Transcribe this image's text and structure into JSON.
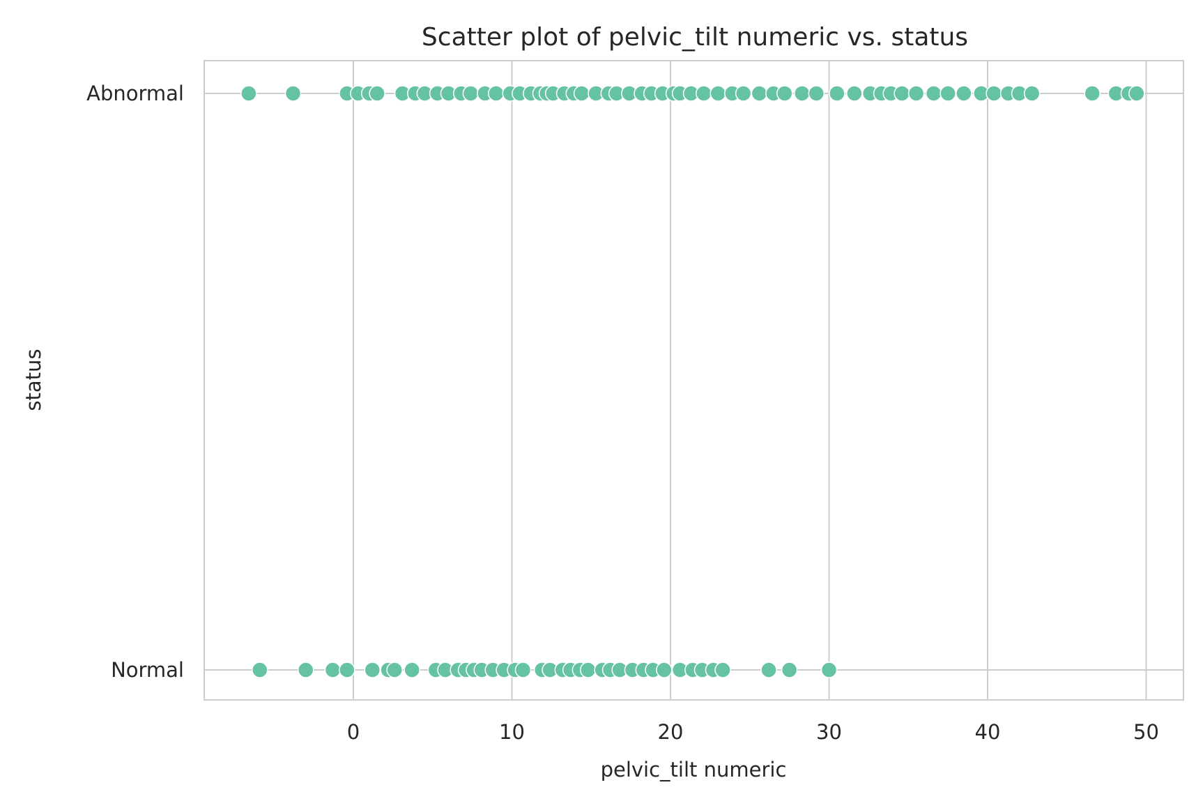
{
  "chart_data": {
    "type": "scatter",
    "title": "Scatter plot of pelvic_tilt numeric vs. status",
    "xlabel": "pelvic_tilt numeric",
    "ylabel": "status",
    "xlim": [
      -9.5,
      52
    ],
    "xticks": [
      0,
      10,
      20,
      30,
      40,
      50
    ],
    "categories": [
      "Abnormal",
      "Normal"
    ],
    "grid": true,
    "point_color": "#66c2a5",
    "series": [
      {
        "category": "Abnormal",
        "x": [
          -6.6,
          -3.8,
          -0.4,
          0.3,
          1.0,
          1.5,
          3.1,
          3.9,
          4.5,
          5.3,
          6.0,
          6.8,
          7.4,
          8.3,
          9.0,
          9.9,
          10.5,
          11.2,
          11.8,
          12.2,
          12.6,
          13.3,
          13.9,
          14.4,
          15.3,
          16.1,
          16.6,
          17.4,
          18.2,
          18.8,
          19.5,
          20.2,
          20.6,
          21.3,
          22.1,
          23.0,
          23.9,
          24.6,
          25.6,
          26.5,
          27.2,
          28.3,
          29.2,
          30.5,
          31.6,
          32.6,
          33.3,
          33.9,
          34.6,
          35.5,
          36.6,
          37.5,
          38.5,
          39.6,
          40.4,
          41.3,
          42.0,
          42.8,
          46.6,
          48.1,
          48.9,
          49.4
        ]
      },
      {
        "category": "Normal",
        "x": [
          -5.9,
          -3.0,
          -1.3,
          -0.4,
          1.2,
          2.2,
          2.6,
          3.7,
          5.2,
          5.8,
          6.6,
          7.1,
          7.6,
          8.1,
          8.8,
          9.5,
          10.2,
          10.7,
          11.9,
          12.4,
          13.2,
          13.7,
          14.3,
          14.8,
          15.7,
          16.2,
          16.8,
          17.6,
          18.3,
          18.9,
          19.6,
          20.6,
          21.4,
          22.0,
          22.7,
          23.3,
          26.2,
          27.5,
          30.0
        ]
      }
    ]
  }
}
